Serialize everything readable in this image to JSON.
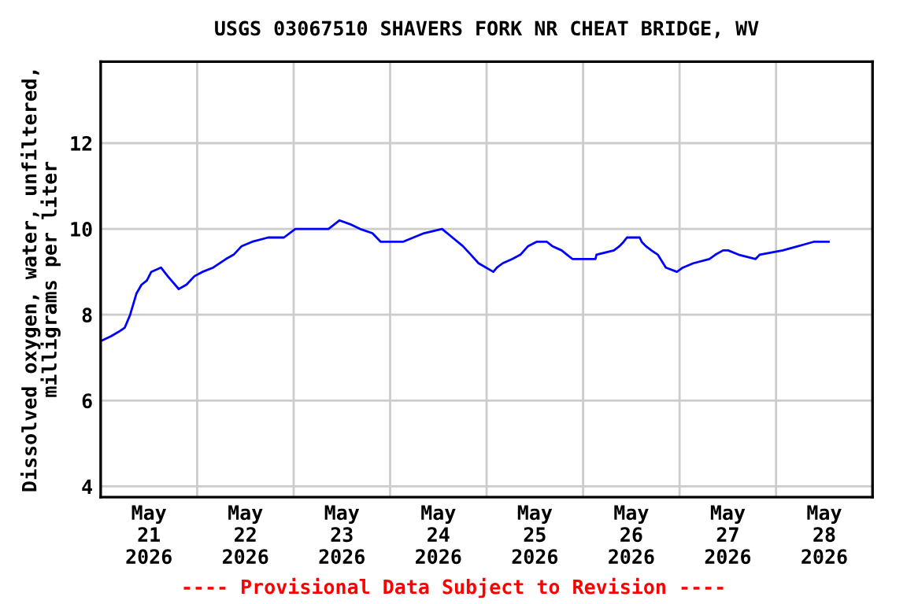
{
  "chart_data": {
    "type": "line",
    "title": "USGS 03067510 SHAVERS FORK NR CHEAT BRIDGE, WV",
    "ylabel": "Dissolved oxygen, water, unfiltered,\nmilligrams per liter",
    "annotations": [
      "---- Provisional Data Subject to Revision ----"
    ],
    "series": [
      {
        "color": "#0000ff",
        "x": [
          "2026-05-21T00:20",
          "2026-05-21T02:35",
          "2026-05-21T04:25",
          "2026-05-21T06:00",
          "2026-05-21T07:20",
          "2026-05-21T08:55",
          "2026-05-21T10:10",
          "2026-05-21T11:30",
          "2026-05-21T12:35",
          "2026-05-21T15:00",
          "2026-05-21T16:40",
          "2026-05-21T19:25",
          "2026-05-21T21:20",
          "2026-05-21T23:20",
          "2026-05-22T01:20",
          "2026-05-22T04:00",
          "2026-05-22T07:10",
          "2026-05-22T09:05",
          "2026-05-22T11:05",
          "2026-05-22T13:40",
          "2026-05-22T17:40",
          "2026-05-22T21:35",
          "2026-05-23T00:25",
          "2026-05-23T08:40",
          "2026-05-23T11:25",
          "2026-05-23T14:20",
          "2026-05-23T16:30",
          "2026-05-23T19:35",
          "2026-05-23T21:40",
          "2026-05-24T03:10",
          "2026-05-24T08:25",
          "2026-05-24T12:55",
          "2026-05-24T15:30",
          "2026-05-24T18:05",
          "2026-05-24T20:05",
          "2026-05-24T22:00",
          "2026-05-25T01:40",
          "2026-05-25T02:35",
          "2026-05-25T04:00",
          "2026-05-25T06:25",
          "2026-05-25T08:25",
          "2026-05-25T10:20",
          "2026-05-25T12:25",
          "2026-05-25T15:00",
          "2026-05-25T16:20",
          "2026-05-25T18:40",
          "2026-05-25T20:00",
          "2026-05-25T21:20",
          "2026-05-26T03:05",
          "2026-05-26T03:20",
          "2026-05-26T07:40",
          "2026-05-26T09:05",
          "2026-05-26T10:05",
          "2026-05-26T10:55",
          "2026-05-26T14:05",
          "2026-05-26T14:35",
          "2026-05-26T15:35",
          "2026-05-26T17:00",
          "2026-05-26T18:35",
          "2026-05-26T20:35",
          "2026-05-26T23:20",
          "2026-05-27T00:50",
          "2026-05-27T03:25",
          "2026-05-27T07:25",
          "2026-05-27T08:55",
          "2026-05-27T10:50",
          "2026-05-27T12:05",
          "2026-05-27T14:40",
          "2026-05-27T18:55",
          "2026-05-27T19:55",
          "2026-05-28T01:40",
          "2026-05-28T05:35",
          "2026-05-28T09:20",
          "2026-05-28T13:05"
        ],
        "values": [
          7.4,
          7.5,
          7.6,
          7.7,
          8.0,
          8.5,
          8.7,
          8.8,
          9.0,
          9.1,
          8.9,
          8.6,
          8.7,
          8.9,
          9.0,
          9.1,
          9.3,
          9.4,
          9.6,
          9.7,
          9.8,
          9.8,
          10.0,
          10.0,
          10.2,
          10.1,
          10.0,
          9.9,
          9.7,
          9.7,
          9.9,
          10.0,
          9.8,
          9.6,
          9.4,
          9.2,
          9.0,
          9.1,
          9.2,
          9.3,
          9.4,
          9.6,
          9.7,
          9.7,
          9.6,
          9.5,
          9.4,
          9.3,
          9.3,
          9.4,
          9.5,
          9.6,
          9.7,
          9.8,
          9.8,
          9.7,
          9.6,
          9.5,
          9.4,
          9.1,
          9.0,
          9.1,
          9.2,
          9.3,
          9.4,
          9.5,
          9.5,
          9.4,
          9.3,
          9.4,
          9.5,
          9.6,
          9.7,
          9.7
        ]
      }
    ],
    "xlim": [
      "2026-05-21T00:00",
      "2026-05-29T00:00"
    ],
    "xticks": [
      {
        "value": "2026-05-21T12:00",
        "label": "May\n21\n2026"
      },
      {
        "value": "2026-05-22T12:00",
        "label": "May\n22\n2026"
      },
      {
        "value": "2026-05-23T12:00",
        "label": "May\n23\n2026"
      },
      {
        "value": "2026-05-24T12:00",
        "label": "May\n24\n2026"
      },
      {
        "value": "2026-05-25T12:00",
        "label": "May\n25\n2026"
      },
      {
        "value": "2026-05-26T12:00",
        "label": "May\n26\n2026"
      },
      {
        "value": "2026-05-27T12:00",
        "label": "May\n27\n2026"
      },
      {
        "value": "2026-05-28T12:00",
        "label": "May\n28\n2026"
      },
      {
        "value": "2026-05-22",
        "label": null
      },
      {
        "value": "2026-05-23",
        "label": null
      },
      {
        "value": "2026-05-24",
        "label": null
      },
      {
        "value": "2026-05-25",
        "label": null
      },
      {
        "value": "2026-05-26",
        "label": null
      },
      {
        "value": "2026-05-27",
        "label": null
      },
      {
        "value": "2026-05-28",
        "label": null
      }
    ],
    "ylim": [
      3.75,
      13.9
    ],
    "yticks": [
      4,
      6,
      8,
      10,
      12
    ],
    "grid": true,
    "legend": false,
    "marker": "none",
    "line_style": "solid"
  }
}
